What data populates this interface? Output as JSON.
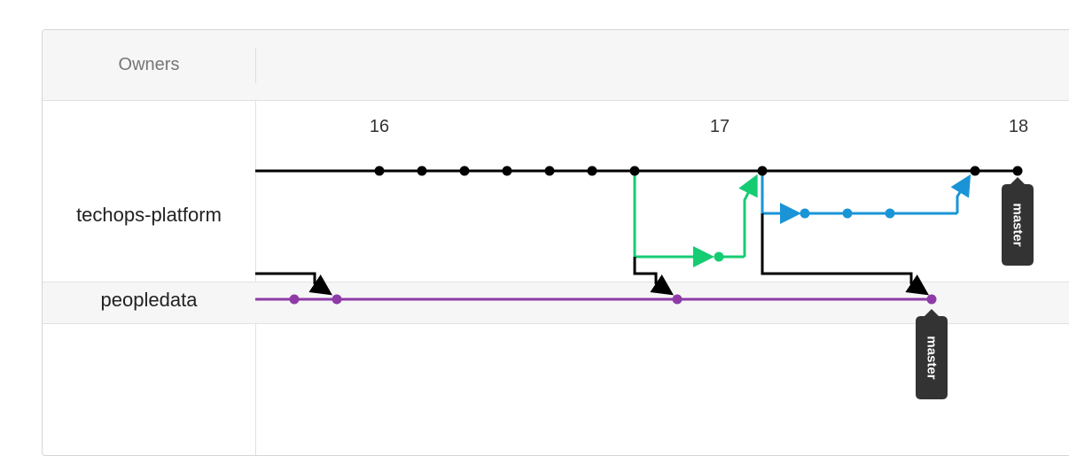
{
  "header": {
    "owners_label": "Owners"
  },
  "repositories": [
    {
      "name": "techops-platform",
      "branch_label": "master"
    },
    {
      "name": "peopledata",
      "branch_label": "master"
    }
  ],
  "timeline": {
    "ticks": [
      "16",
      "17",
      "18"
    ]
  },
  "colors": {
    "main": "#000000",
    "branch_green": "#15cc73",
    "branch_blue": "#1a94d6",
    "peopledata": "#8e3ba8",
    "label_bg": "#333333"
  }
}
